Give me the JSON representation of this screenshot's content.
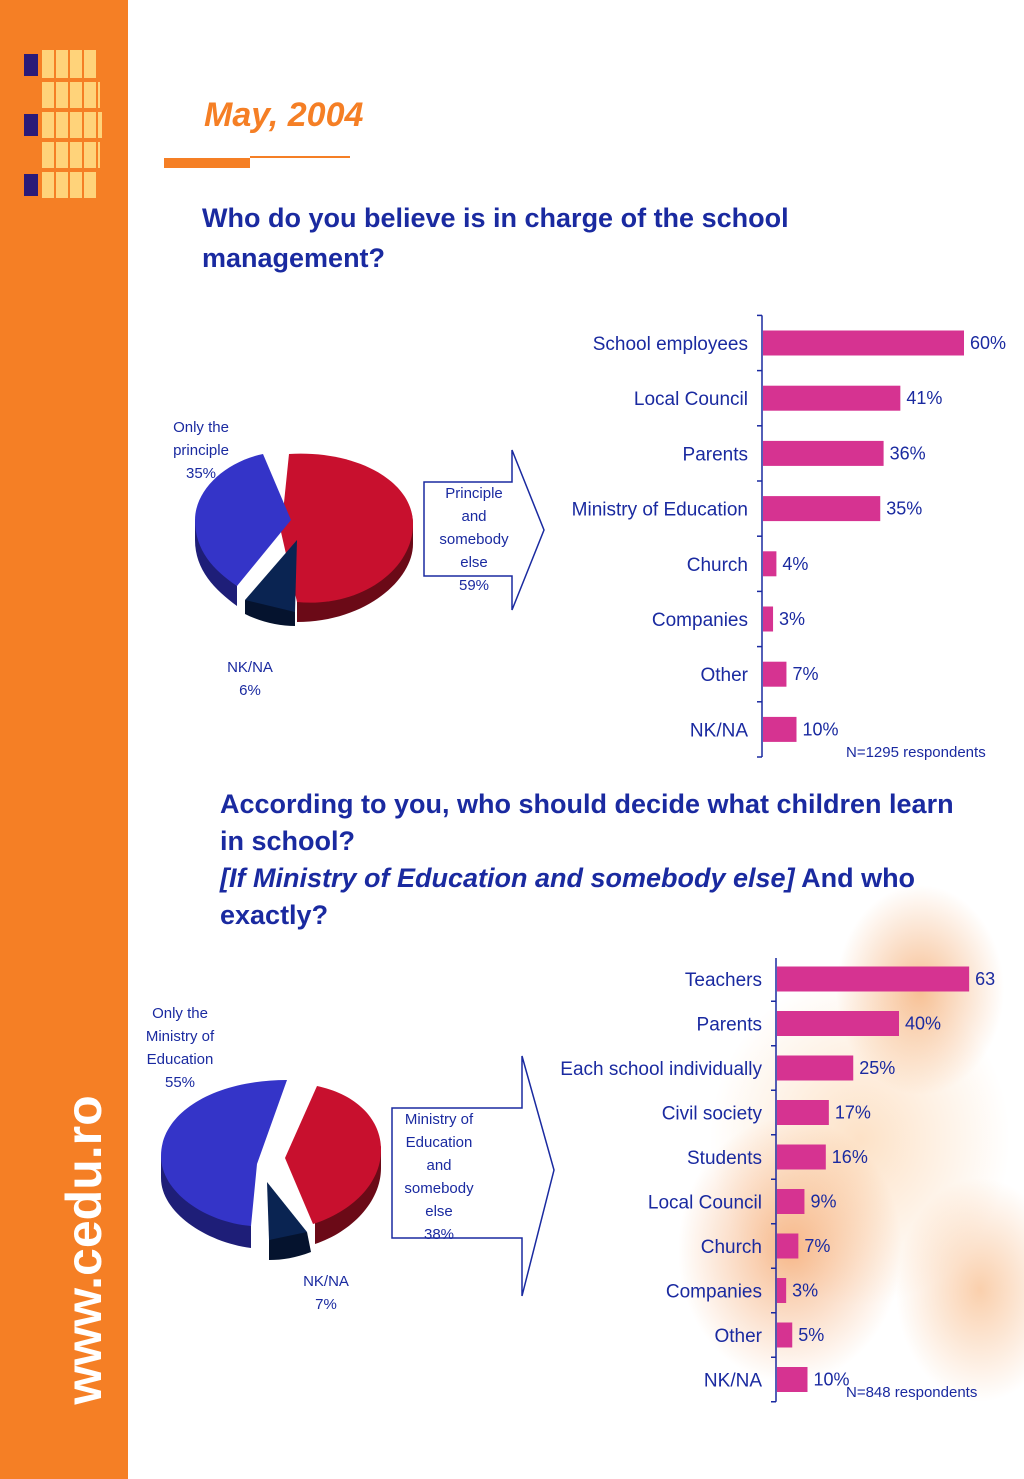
{
  "header": {
    "date": "May, 2004",
    "website": "www.cedu.ro"
  },
  "colors": {
    "accent": "#f57f25",
    "heading": "#1a2aa0",
    "bar": "#d63391",
    "pie_blue": "#3434c8",
    "pie_red": "#c8102e",
    "pie_navy": "#0a2452"
  },
  "section1": {
    "question": "Who do you believe is in charge of the school management?",
    "pie_labels": {
      "only": [
        "Only the",
        "principle",
        "35%"
      ],
      "nk": [
        "NK/NA",
        "6%"
      ],
      "arrow": [
        "Principle",
        "and",
        "somebody",
        "else",
        "59%"
      ]
    },
    "note": "N=1295 respondents"
  },
  "section2": {
    "question_line1": "According to you, who should decide what children learn in school?",
    "question_italic": "[If Ministry of Education and somebody else]",
    "question_tail": " And who exactly?",
    "pie_labels": {
      "only": [
        "Only the",
        "Ministry of",
        "Education",
        "55%"
      ],
      "nk": [
        "NK/NA",
        "7%"
      ],
      "arrow": [
        "Ministry of",
        "Education",
        "and",
        "somebody",
        "else",
        "38%"
      ]
    },
    "note": "N=848 respondents"
  },
  "chart_data": [
    {
      "type": "pie",
      "title": "",
      "slices": [
        {
          "label": "Only the principle",
          "value": 35
        },
        {
          "label": "NK/NA",
          "value": 6
        },
        {
          "label": "Principle and somebody else",
          "value": 59
        }
      ]
    },
    {
      "type": "bar",
      "orientation": "horizontal",
      "categories": [
        "School employees",
        "Local Council",
        "Parents",
        "Ministry of Education",
        "Church",
        "Companies",
        "Other",
        "NK/NA"
      ],
      "values": [
        60,
        41,
        36,
        35,
        4,
        3,
        7,
        10
      ],
      "labels": [
        "60%",
        "41%",
        "36%",
        "35%",
        "4%",
        "3%",
        "7%",
        "10%"
      ],
      "xlim": [
        0,
        60
      ]
    },
    {
      "type": "pie",
      "title": "",
      "slices": [
        {
          "label": "Only the Ministry of Education",
          "value": 55
        },
        {
          "label": "NK/NA",
          "value": 7
        },
        {
          "label": "Ministry of Education and somebody else",
          "value": 38
        }
      ]
    },
    {
      "type": "bar",
      "orientation": "horizontal",
      "categories": [
        "Teachers",
        "Parents",
        "Each school individually",
        "Civil society",
        "Students",
        "Local Council",
        "Church",
        "Companies",
        "Other",
        "NK/NA"
      ],
      "values": [
        63,
        40,
        25,
        17,
        16,
        9,
        7,
        3,
        5,
        10
      ],
      "labels": [
        "63",
        "40%",
        "25%",
        "17%",
        "16%",
        "9%",
        "7%",
        "3%",
        "5%",
        "10%"
      ],
      "xlim": [
        0,
        63
      ]
    }
  ]
}
